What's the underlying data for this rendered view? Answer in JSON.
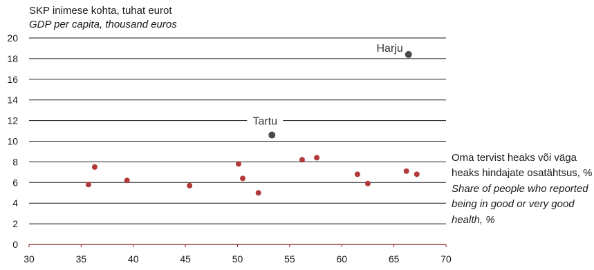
{
  "chart_data": {
    "type": "scatter",
    "ylabel": "SKP inimese kohta, tuhat eurot",
    "ylabel_en": "GDP per capita, thousand euros",
    "xlabel": "Oma tervist heaks või väga heaks hindajate osatähtsus, %",
    "xlabel_en": "Share of people who reported being in good or very good health, %",
    "xlim": [
      30,
      70
    ],
    "ylim": [
      0,
      20
    ],
    "xticks": [
      30,
      35,
      40,
      45,
      50,
      55,
      60,
      65,
      70
    ],
    "yticks": [
      0,
      2,
      4,
      6,
      8,
      10,
      12,
      14,
      16,
      18,
      20
    ],
    "grid": "horizontal",
    "colors": {
      "regular": "#b23a3a",
      "highlight": "#4a4a4a",
      "axis": "#8b1a1a",
      "grid": "#1a1a1a"
    },
    "points": [
      {
        "x": 35.7,
        "y": 5.8
      },
      {
        "x": 36.3,
        "y": 7.5
      },
      {
        "x": 39.4,
        "y": 6.2
      },
      {
        "x": 45.4,
        "y": 5.7
      },
      {
        "x": 50.1,
        "y": 7.8
      },
      {
        "x": 50.5,
        "y": 6.4
      },
      {
        "x": 52.0,
        "y": 5.0
      },
      {
        "x": 56.2,
        "y": 8.2
      },
      {
        "x": 57.6,
        "y": 8.4
      },
      {
        "x": 61.5,
        "y": 6.8
      },
      {
        "x": 62.5,
        "y": 5.9
      },
      {
        "x": 66.2,
        "y": 7.1
      },
      {
        "x": 67.2,
        "y": 6.8
      },
      {
        "x": 53.3,
        "y": 10.6,
        "label": "Tartu",
        "highlight": true
      },
      {
        "x": 66.4,
        "y": 18.4,
        "label": "Harju",
        "highlight": true
      }
    ]
  }
}
